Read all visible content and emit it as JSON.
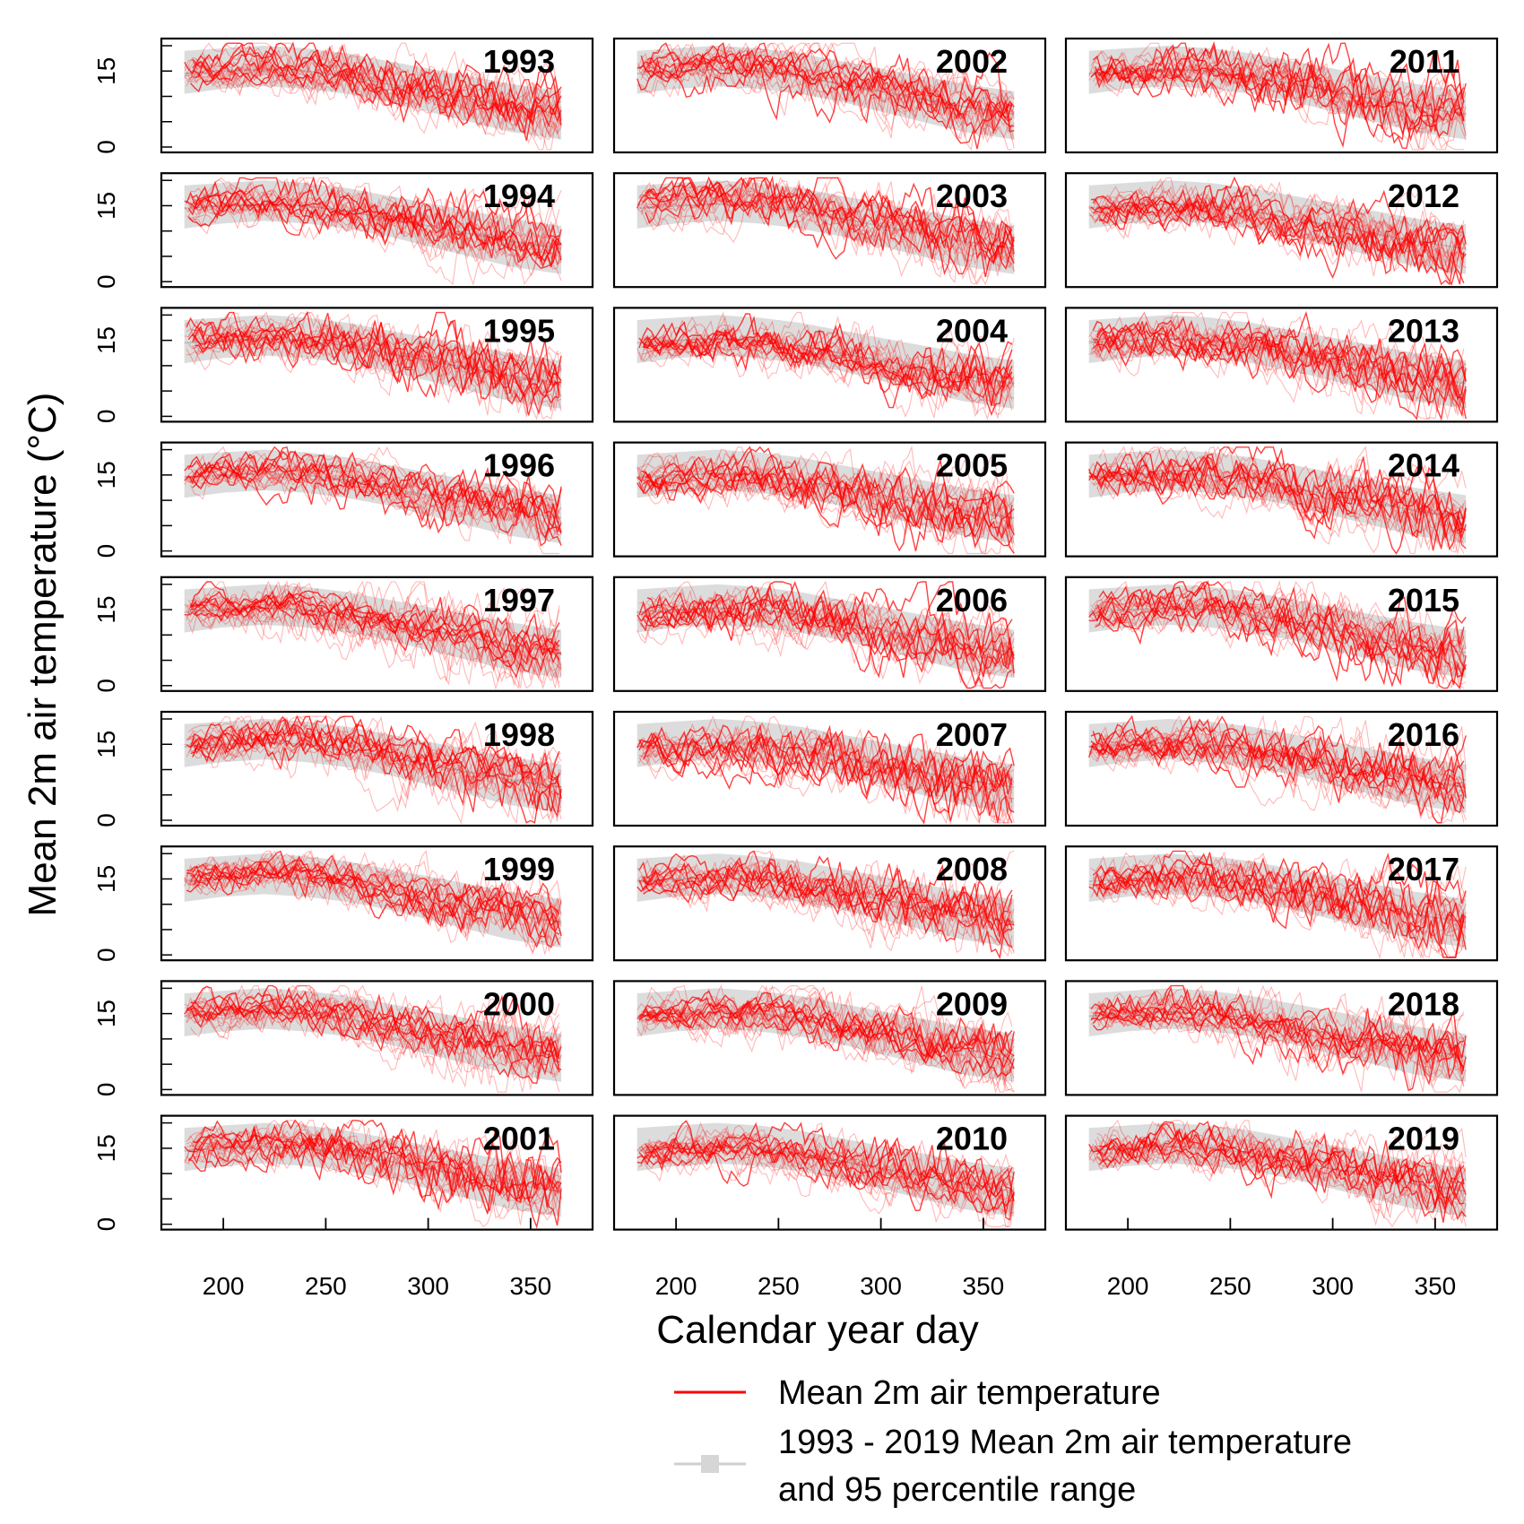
{
  "chart_data": {
    "type": "line",
    "layout": "small-multiples 9 rows x 3 columns",
    "xlabel": "Calendar year day",
    "ylabel": "Mean 2m air temperature (°C)",
    "xlim": [
      175,
      375
    ],
    "ylim": [
      0,
      20
    ],
    "x_ticks": [
      200,
      250,
      300,
      350
    ],
    "y_ticks": [
      0,
      15
    ],
    "grid": false,
    "legend_position": "bottom-right",
    "legend": {
      "line_label": "Mean 2m air temperature",
      "band_label_line1": "1993 - 2019 Mean 2m air temperature",
      "band_label_line2": "and 95 percentile range"
    },
    "colors": {
      "series": "#ff0000",
      "band": "#dcdcdc",
      "band_mean": "#bdbdbd"
    },
    "climatology": {
      "x": [
        181,
        200,
        220,
        240,
        260,
        280,
        300,
        320,
        340,
        365
      ],
      "mean": [
        14.5,
        15.0,
        15.3,
        15.0,
        14.0,
        12.5,
        11.0,
        9.5,
        8.0,
        6.5
      ],
      "lower": [
        10.5,
        11.5,
        12.0,
        11.5,
        10.5,
        9.0,
        7.0,
        5.0,
        3.0,
        1.5
      ],
      "upper": [
        19.0,
        19.5,
        20.0,
        19.5,
        18.5,
        17.0,
        15.5,
        14.0,
        12.5,
        11.0
      ]
    },
    "panels": [
      {
        "year": "1993"
      },
      {
        "year": "1994"
      },
      {
        "year": "1995"
      },
      {
        "year": "1996"
      },
      {
        "year": "1997"
      },
      {
        "year": "1998"
      },
      {
        "year": "1999"
      },
      {
        "year": "2000"
      },
      {
        "year": "2001"
      },
      {
        "year": "2002"
      },
      {
        "year": "2003"
      },
      {
        "year": "2004"
      },
      {
        "year": "2005"
      },
      {
        "year": "2006"
      },
      {
        "year": "2007"
      },
      {
        "year": "2008"
      },
      {
        "year": "2009"
      },
      {
        "year": "2010"
      },
      {
        "year": "2011"
      },
      {
        "year": "2012"
      },
      {
        "year": "2013"
      },
      {
        "year": "2014"
      },
      {
        "year": "2015"
      },
      {
        "year": "2016"
      },
      {
        "year": "2017"
      },
      {
        "year": "2018"
      },
      {
        "year": "2019"
      }
    ]
  }
}
